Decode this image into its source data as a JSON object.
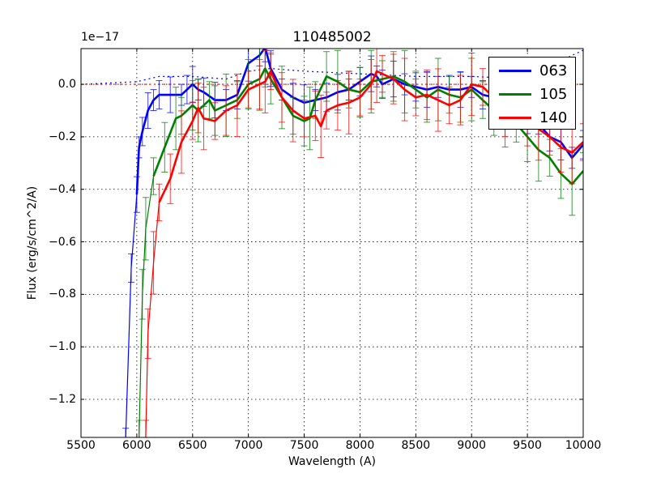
{
  "chart_data": {
    "type": "line",
    "title": "110485002",
    "xlabel": "Wavelength (A)",
    "ylabel": "Flux (erg/s/cm^2/A)",
    "y_offset_label": "1e−17",
    "xlim": [
      5500,
      10000
    ],
    "ylim": [
      -1.345,
      0.136
    ],
    "y_scale": "1e-17",
    "grid": true,
    "legend_position": "upper right",
    "x_ticks": [
      5500,
      6000,
      6500,
      7000,
      7500,
      8000,
      8500,
      9000,
      9500,
      10000
    ],
    "x_tick_labels": [
      "5500",
      "6000",
      "6500",
      "7000",
      "7500",
      "8000",
      "8500",
      "9000",
      "9500",
      "10000"
    ],
    "y_ticks": [
      0.0,
      -0.2,
      -0.4,
      -0.6,
      -0.8,
      -1.0,
      -1.2
    ],
    "y_tick_labels": [
      "0.0",
      "−0.2",
      "−0.4",
      "−0.6",
      "−0.8",
      "−1.0",
      "−1.2"
    ],
    "series": [
      {
        "name": "063",
        "color": "#0000ff",
        "x": [
          5900,
          5950,
          6000,
          6020,
          6050,
          6100,
          6150,
          6200,
          6300,
          6400,
          6450,
          6500,
          6550,
          6600,
          6700,
          6800,
          6900,
          7000,
          7100,
          7150,
          7200,
          7300,
          7400,
          7500,
          7600,
          7700,
          7800,
          7900,
          8000,
          8100,
          8150,
          8200,
          8300,
          8400,
          8500,
          8600,
          8700,
          8800,
          8900,
          9000,
          9100,
          9200,
          9300,
          9400,
          9500,
          9600,
          9700,
          9800,
          9900,
          10000
        ],
        "values": [
          -1.35,
          -0.7,
          -0.42,
          -0.24,
          -0.18,
          -0.1,
          -0.06,
          -0.04,
          -0.04,
          -0.04,
          -0.02,
          0.0,
          -0.02,
          -0.03,
          -0.06,
          -0.06,
          -0.04,
          0.08,
          0.11,
          0.14,
          0.06,
          -0.02,
          -0.05,
          -0.07,
          -0.06,
          -0.05,
          -0.03,
          -0.02,
          0.01,
          0.04,
          0.03,
          0.0,
          0.02,
          0.0,
          -0.01,
          -0.02,
          -0.01,
          -0.02,
          -0.02,
          -0.01,
          -0.04,
          -0.05,
          -0.06,
          -0.1,
          -0.12,
          -0.15,
          -0.2,
          -0.22,
          -0.28,
          -0.23
        ],
        "error": 0.04
      },
      {
        "name": "105",
        "color": "#008000",
        "x": [
          6020,
          6050,
          6080,
          6150,
          6250,
          6350,
          6400,
          6500,
          6550,
          6650,
          6700,
          6800,
          6900,
          7000,
          7100,
          7150,
          7200,
          7300,
          7400,
          7500,
          7550,
          7600,
          7700,
          7800,
          7900,
          8000,
          8100,
          8200,
          8300,
          8400,
          8500,
          8600,
          8700,
          8800,
          8900,
          9000,
          9100,
          9200,
          9300,
          9400,
          9500,
          9600,
          9700,
          9800,
          9900,
          10000
        ],
        "values": [
          -1.35,
          -0.8,
          -0.55,
          -0.35,
          -0.24,
          -0.13,
          -0.12,
          -0.08,
          -0.1,
          -0.06,
          -0.1,
          -0.08,
          -0.06,
          0.0,
          0.02,
          0.06,
          0.02,
          -0.05,
          -0.12,
          -0.14,
          -0.13,
          -0.06,
          0.03,
          0.01,
          -0.02,
          -0.03,
          0.01,
          0.02,
          0.03,
          0.01,
          -0.02,
          -0.05,
          -0.02,
          -0.04,
          -0.05,
          -0.02,
          -0.06,
          -0.1,
          -0.12,
          -0.15,
          -0.2,
          -0.25,
          -0.28,
          -0.34,
          -0.38,
          -0.33
        ],
        "error": 0.07
      },
      {
        "name": "140",
        "color": "#ff0000",
        "x": [
          6080,
          6100,
          6150,
          6200,
          6300,
          6400,
          6500,
          6550,
          6600,
          6700,
          6800,
          6900,
          7000,
          7100,
          7150,
          7200,
          7300,
          7400,
          7500,
          7600,
          7650,
          7700,
          7800,
          7900,
          8000,
          8100,
          8150,
          8200,
          8300,
          8400,
          8500,
          8600,
          8700,
          8800,
          8900,
          9000,
          9100,
          9200,
          9300,
          9400,
          9500,
          9600,
          9700,
          9800,
          9900,
          10000
        ],
        "values": [
          -1.35,
          -0.95,
          -0.68,
          -0.45,
          -0.36,
          -0.22,
          -0.14,
          -0.09,
          -0.13,
          -0.14,
          -0.1,
          -0.08,
          -0.02,
          0.0,
          0.01,
          0.05,
          -0.05,
          -0.1,
          -0.13,
          -0.12,
          -0.16,
          -0.1,
          -0.08,
          -0.07,
          -0.05,
          0.0,
          0.05,
          0.04,
          0.02,
          -0.02,
          -0.05,
          -0.04,
          -0.06,
          -0.08,
          -0.06,
          0.0,
          -0.01,
          -0.05,
          -0.08,
          -0.1,
          -0.14,
          -0.17,
          -0.2,
          -0.24,
          -0.26,
          -0.22
        ],
        "error": 0.07
      }
    ],
    "reference_lines": [
      {
        "name": "063-sky",
        "color": "#0000ff",
        "style": "dotted",
        "x": [
          5500,
          6000,
          6200,
          6500,
          6800,
          7000,
          7200,
          7500,
          8000,
          8500,
          9000,
          9500,
          9800,
          10000
        ],
        "values": [
          0.0,
          0.01,
          0.03,
          0.03,
          0.02,
          0.05,
          0.06,
          0.05,
          0.04,
          0.03,
          0.03,
          0.02,
          0.09,
          0.13
        ]
      },
      {
        "name": "zero",
        "color": "#ff0000",
        "style": "dotted",
        "x": [
          5500,
          10000
        ],
        "values": [
          0.0,
          0.0
        ]
      }
    ]
  },
  "legend": {
    "items": [
      {
        "label": "063",
        "color": "#0000ff"
      },
      {
        "label": "105",
        "color": "#008000"
      },
      {
        "label": "140",
        "color": "#ff0000"
      }
    ]
  }
}
